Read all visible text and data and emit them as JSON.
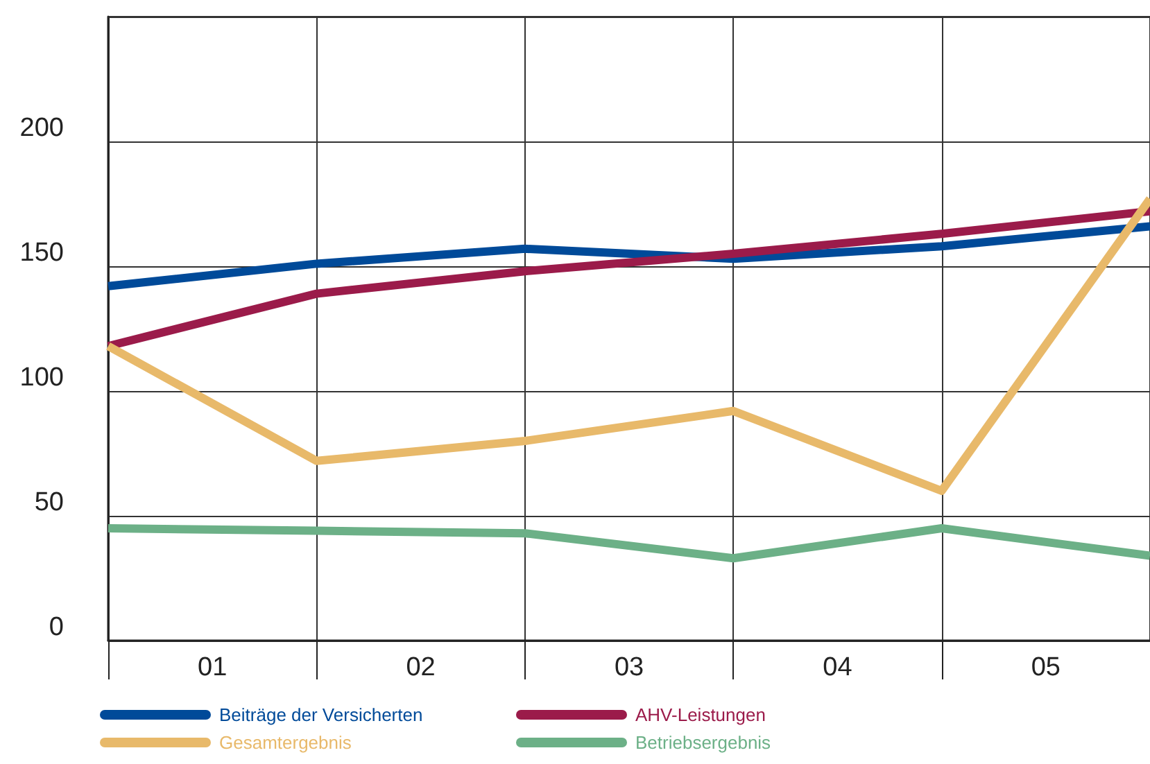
{
  "chart_data": {
    "type": "line",
    "x": [
      0,
      1,
      2,
      3,
      4,
      5
    ],
    "xlim": [
      0,
      5
    ],
    "xticks": [
      {
        "value": 0,
        "label": null
      },
      {
        "value": 0.5,
        "label": "01"
      },
      {
        "value": 1,
        "label": null
      },
      {
        "value": 1.5,
        "label": "02"
      },
      {
        "value": 2,
        "label": null
      },
      {
        "value": 2.5,
        "label": "03"
      },
      {
        "value": 3,
        "label": null
      },
      {
        "value": 3.5,
        "label": "04"
      },
      {
        "value": 4,
        "label": null
      },
      {
        "value": 4.5,
        "label": "05"
      },
      {
        "value": 5,
        "label": null
      }
    ],
    "ylim": [
      0,
      250
    ],
    "yticks": [
      0,
      50,
      100,
      150,
      200
    ],
    "series": [
      {
        "name": "Beiträge der Versicherten",
        "color": "#004a99",
        "values": [
          142,
          151,
          157,
          153,
          158,
          166
        ]
      },
      {
        "name": "AHV-Leistungen",
        "color": "#9b1b4a",
        "values": [
          118,
          139,
          148,
          155,
          163,
          172
        ]
      },
      {
        "name": "Gesamtergebnis",
        "color": "#e8b96a",
        "values": [
          118,
          72,
          80,
          92,
          60,
          177
        ]
      },
      {
        "name": "Betriebsergebnis",
        "color": "#6cb087",
        "values": [
          45,
          44,
          43,
          33,
          45,
          34
        ]
      }
    ],
    "grid": true,
    "legend": "bottom left",
    "marker": "none",
    "line_style": "solid"
  }
}
